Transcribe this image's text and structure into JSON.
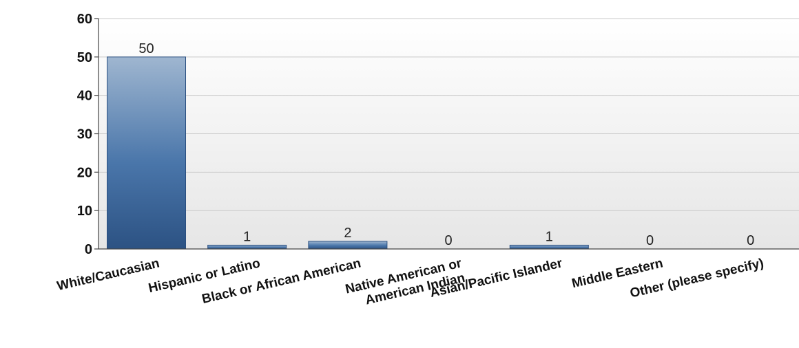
{
  "chart_data": {
    "type": "bar",
    "categories": [
      [
        "White/Caucasian"
      ],
      [
        "Hispanic or Latino"
      ],
      [
        "Black or African American"
      ],
      [
        "Native American or",
        "American Indian"
      ],
      [
        "Asian/Pacific Islander"
      ],
      [
        "Middle Eastern"
      ],
      [
        "Other (please specify)"
      ]
    ],
    "values": [
      50,
      1,
      2,
      0,
      1,
      0,
      0
    ],
    "data_labels": [
      "50",
      "1",
      "2",
      "0",
      "1",
      "0",
      "0"
    ],
    "yticks": [
      "0",
      "10",
      "20",
      "30",
      "40",
      "50",
      "60"
    ],
    "ylim": [
      0,
      60
    ],
    "grid": true,
    "legend": "none",
    "title": "",
    "xlabel": "",
    "ylabel": "",
    "colors": {
      "bar_top": "#9fb6d0",
      "bar_mid": "#4a76aa",
      "bar_bottom": "#2c5283",
      "bar_stroke": "#2a4f80",
      "grid": "#c8c8c8",
      "axis": "#444444",
      "plot_bg_top": "#ffffff",
      "plot_bg_bottom": "#e6e6e6"
    }
  }
}
